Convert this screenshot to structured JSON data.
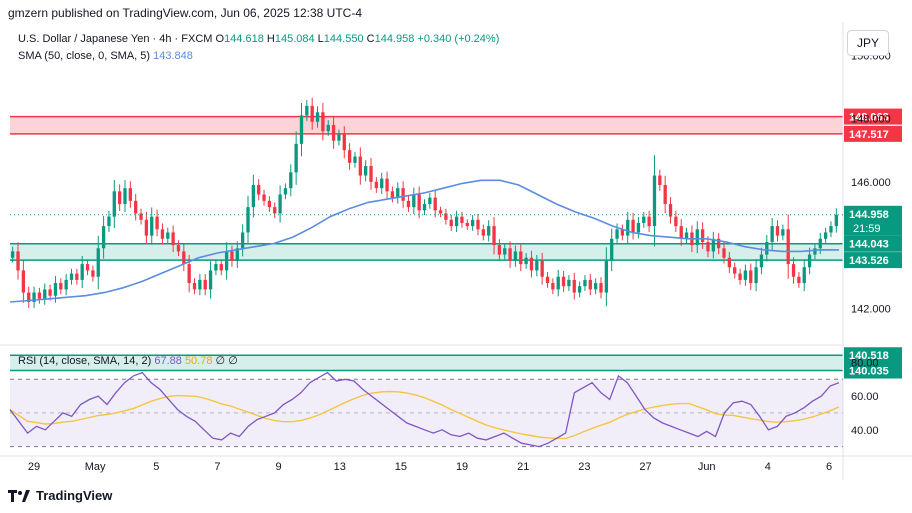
{
  "header": {
    "published": "gmzern published on TradingView.com, Jun 06, 2025 12:38 UTC-4"
  },
  "legend": {
    "symbol": "U.S. Dollar / Japanese Yen · 4h · FXCM",
    "open_label": "O",
    "open": "144.618",
    "high_label": "H",
    "high": "145.084",
    "low_label": "L",
    "low": "144.550",
    "close_label": "C",
    "close": "144.958",
    "change": "+0.340 (+0.24%)",
    "sma_label": "SMA (50, close, 0, SMA, 5)",
    "sma_value": "143.848",
    "rsi_label": "RSI (14, close, SMA, 14, 2)",
    "rsi_value": "67.88",
    "rsi_ma_value": "50.78",
    "rsi_extra1": "∅",
    "rsi_extra2": "∅"
  },
  "currency": "JPY",
  "footer": {
    "brand": "TradingView"
  },
  "colors": {
    "up": "#089981",
    "down": "#f23645",
    "sma": "#5b8de0",
    "red_zone": "#f23645",
    "green_zone": "#089981",
    "rsi_line": "#7e57c2",
    "rsi_ma": "#f5c542",
    "current_price": "#089981"
  },
  "chart_data": {
    "type": "candlestick",
    "price_axis": {
      "min": 141.0,
      "max": 150.8,
      "ticks": [
        "150.000",
        "148.000",
        "146.000",
        "142.000"
      ]
    },
    "rsi_axis": {
      "min": 25,
      "max": 88,
      "ticks": [
        "80.00",
        "60.00",
        "40.00"
      ],
      "band_upper": 70,
      "band_lower": 30
    },
    "time_labels": [
      "29",
      "May",
      "5",
      "7",
      "9",
      "13",
      "15",
      "19",
      "21",
      "23",
      "27",
      "Jun",
      "4",
      "6"
    ],
    "zones": [
      {
        "type": "resistance",
        "top": 148.063,
        "bottom": 147.517,
        "top_label": "148.063",
        "bottom_label": "147.517"
      },
      {
        "type": "support",
        "top": 144.043,
        "bottom": 143.526,
        "top_label": "144.043",
        "bottom_label": "143.526"
      },
      {
        "type": "support",
        "top": 140.518,
        "bottom": 140.035,
        "top_label": "140.518",
        "bottom_label": "140.035"
      }
    ],
    "current_price": {
      "value": 144.958,
      "label": "144.958",
      "countdown": "21:59"
    },
    "closes": [
      143.8,
      143.2,
      142.5,
      142.2,
      142.5,
      142.3,
      142.6,
      142.4,
      142.8,
      142.6,
      142.9,
      143.1,
      142.9,
      143.4,
      143.2,
      143.0,
      143.9,
      144.6,
      144.9,
      145.7,
      145.3,
      145.8,
      145.4,
      145.0,
      144.8,
      144.3,
      144.9,
      144.5,
      144.2,
      144.4,
      144.0,
      143.8,
      143.4,
      142.8,
      142.6,
      142.9,
      142.6,
      143.2,
      143.4,
      143.2,
      143.8,
      143.5,
      143.9,
      144.4,
      145.2,
      145.9,
      145.6,
      145.4,
      145.2,
      145.0,
      145.6,
      145.8,
      146.3,
      147.2,
      148.1,
      148.4,
      147.9,
      148.2,
      147.6,
      147.8,
      147.3,
      147.5,
      147.0,
      146.6,
      146.8,
      146.2,
      146.5,
      146.0,
      145.8,
      146.1,
      145.7,
      145.5,
      145.8,
      145.4,
      145.2,
      145.6,
      145.1,
      145.3,
      145.5,
      145.1,
      145.0,
      144.8,
      144.6,
      144.9,
      144.7,
      144.6,
      144.8,
      144.5,
      144.3,
      144.6,
      144.0,
      143.7,
      143.9,
      143.5,
      143.8,
      143.4,
      143.6,
      143.2,
      143.5,
      143.0,
      142.8,
      142.6,
      143.0,
      142.7,
      142.9,
      142.5,
      142.7,
      142.9,
      142.6,
      142.8,
      142.5,
      143.5,
      144.2,
      144.5,
      144.3,
      144.8,
      144.4,
      144.7,
      144.9,
      144.6,
      146.2,
      145.9,
      145.3,
      144.9,
      144.6,
      144.2,
      144.4,
      144.0,
      144.5,
      144.1,
      143.8,
      144.2,
      143.9,
      143.6,
      143.3,
      143.1,
      142.9,
      143.2,
      142.8,
      143.3,
      143.7,
      144.1,
      144.6,
      144.3,
      144.5,
      143.4,
      143.0,
      142.8,
      143.3,
      143.7,
      143.9,
      144.2,
      144.4,
      144.6,
      144.958
    ],
    "sma": [
      142.2,
      142.25,
      142.3,
      142.35,
      142.4,
      142.5,
      142.65,
      142.85,
      143.1,
      143.35,
      143.6,
      143.75,
      143.85,
      143.95,
      144.05,
      144.25,
      144.55,
      144.9,
      145.15,
      145.35,
      145.45,
      145.55,
      145.65,
      145.8,
      145.95,
      146.05,
      146.05,
      145.9,
      145.6,
      145.3,
      145.05,
      144.85,
      144.6,
      144.4,
      144.3,
      144.25,
      144.2,
      144.2,
      144.1,
      143.95,
      143.85,
      143.8,
      143.8,
      143.85,
      143.848
    ],
    "rsi": [
      52,
      45,
      38,
      42,
      40,
      45,
      50,
      48,
      55,
      58,
      60,
      55,
      62,
      68,
      72,
      74,
      68,
      64,
      58,
      52,
      48,
      45,
      40,
      35,
      34,
      38,
      36,
      42,
      46,
      48,
      50,
      55,
      58,
      62,
      68,
      71,
      74,
      69,
      70,
      69,
      64,
      60,
      56,
      52,
      48,
      44,
      42,
      40,
      38,
      40,
      37,
      36,
      38,
      35,
      34,
      36,
      38,
      35,
      32,
      31,
      30,
      32,
      35,
      38,
      62,
      65,
      68,
      62,
      58,
      72,
      68,
      60,
      52,
      47,
      44,
      42,
      40,
      38,
      36,
      39,
      36,
      50,
      56,
      57,
      55,
      48,
      40,
      42,
      48,
      50,
      53,
      57,
      60,
      66,
      68
    ]
  }
}
